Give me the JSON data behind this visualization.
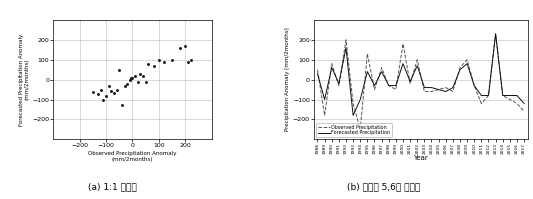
{
  "scatter_obs": [
    -150,
    -130,
    -120,
    -110,
    -100,
    -90,
    -80,
    -70,
    -60,
    -50,
    -30,
    -20,
    -10,
    0,
    10,
    20,
    30,
    40,
    50,
    60,
    80,
    100,
    120,
    150,
    180,
    200,
    210,
    220,
    -40,
    -5
  ],
  "scatter_fct": [
    -60,
    -70,
    -50,
    -100,
    -80,
    -30,
    -55,
    -65,
    -50,
    50,
    -30,
    -20,
    0,
    10,
    20,
    -10,
    30,
    20,
    -10,
    80,
    70,
    100,
    90,
    100,
    160,
    170,
    90,
    100,
    -130,
    10
  ],
  "years": [
    1988,
    1989,
    1990,
    1991,
    1992,
    1993,
    1994,
    1995,
    1996,
    1997,
    1998,
    1999,
    2000,
    2001,
    2002,
    2003,
    2004,
    2005,
    2006,
    2007,
    2008,
    2009,
    2010,
    2011,
    2012,
    2013,
    2014,
    2015,
    2016,
    2017
  ],
  "obs_values": [
    50,
    -180,
    80,
    -30,
    200,
    -120,
    -250,
    130,
    -50,
    60,
    -30,
    -50,
    180,
    -20,
    100,
    -60,
    -60,
    -50,
    -40,
    -60,
    60,
    100,
    -30,
    -120,
    -80,
    230,
    -80,
    -100,
    -120,
    -160
  ],
  "fct_values": [
    30,
    -100,
    60,
    -20,
    160,
    -180,
    -100,
    40,
    -30,
    40,
    -30,
    -30,
    80,
    -10,
    70,
    -40,
    -40,
    -50,
    -60,
    -40,
    50,
    80,
    -30,
    -80,
    -80,
    230,
    -80,
    -80,
    -80,
    -120
  ],
  "scatter_xlim": [
    -300,
    300
  ],
  "scatter_ylim": [
    -300,
    300
  ],
  "ts_ylim": [
    -300,
    300
  ],
  "scatter_xlabel": "Observed Precipitation Anomaly",
  "scatter_xlabel2": "(mm/2months)",
  "scatter_ylabel_line1": "Forecasted Precipitation Anomaly",
  "scatter_ylabel_line2": "(mm/2months)",
  "ts_ylabel": "Precipitation Anomaly [mm/2months]",
  "ts_xlabel": "Year",
  "caption_a": "(a) 1:1 산포도",
  "caption_b": "(b) 연도별 5,6월 강수량",
  "legend_obs": "Observed Precipitation",
  "legend_fct": "Forecasted Precipitation",
  "obs_color": "#555555",
  "fct_color": "#111111",
  "scatter_color": "#1a1a1a",
  "grid_color": "#bbbbbb",
  "background": "#ffffff",
  "scatter_yticks": [
    -200,
    -100,
    0,
    100,
    200
  ],
  "scatter_xticks": [
    -200,
    -100,
    0,
    100,
    200
  ],
  "ts_yticks": [
    -200,
    -100,
    0,
    100,
    200
  ]
}
